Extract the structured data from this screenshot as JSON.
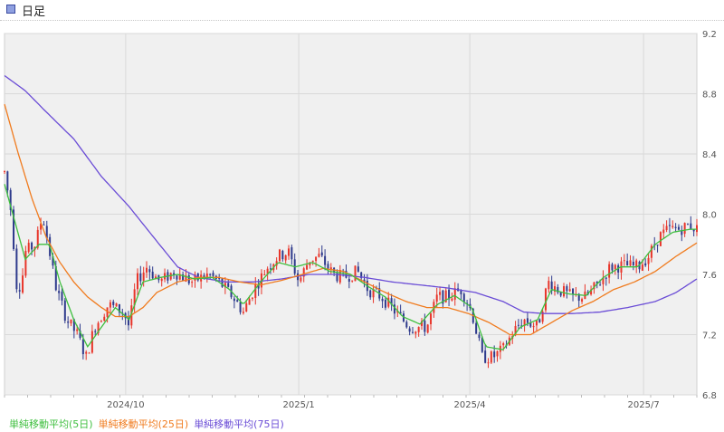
{
  "header": {
    "title": "日足"
  },
  "legend": {
    "ma5": "単純移動平均(5日)",
    "ma25": "単純移動平均(25日)",
    "ma75": "単純移動平均(75日)"
  },
  "colors": {
    "up": "#e8352a",
    "down": "#2e3a8c",
    "ma5": "#3fbf3f",
    "ma25": "#f07b1e",
    "ma75": "#6a4cd6",
    "plot_bg": "#f0f0f0",
    "grid": "#d9d9d9"
  },
  "chart_data": {
    "type": "candlestick",
    "x_ticks": [
      {
        "label": "2024/10",
        "t": 0.175
      },
      {
        "label": "2025/1",
        "t": 0.425
      },
      {
        "label": "2025/4",
        "t": 0.672
      },
      {
        "label": "2025/7",
        "t": 0.923
      }
    ],
    "y_ticks": [
      6.8,
      7.2,
      7.6,
      8.0,
      8.4,
      8.8,
      9.2
    ],
    "ylim": [
      6.8,
      9.2
    ],
    "grid": true,
    "series": {
      "ma5_name": "単純移動平均(5日)",
      "ma25_name": "単純移動平均(25日)",
      "ma75_name": "単純移動平均(75日)"
    },
    "price_path": [
      [
        0,
        8.28
      ],
      [
        0.01,
        8.0
      ],
      [
        0.018,
        7.5
      ],
      [
        0.025,
        7.55
      ],
      [
        0.03,
        7.75
      ],
      [
        0.045,
        7.8
      ],
      [
        0.055,
        8.0
      ],
      [
        0.065,
        7.75
      ],
      [
        0.075,
        7.5
      ],
      [
        0.09,
        7.3
      ],
      [
        0.105,
        7.2
      ],
      [
        0.118,
        7.05
      ],
      [
        0.13,
        7.25
      ],
      [
        0.15,
        7.4
      ],
      [
        0.172,
        7.35
      ],
      [
        0.18,
        7.25
      ],
      [
        0.19,
        7.55
      ],
      [
        0.205,
        7.65
      ],
      [
        0.225,
        7.55
      ],
      [
        0.245,
        7.62
      ],
      [
        0.27,
        7.55
      ],
      [
        0.295,
        7.6
      ],
      [
        0.31,
        7.55
      ],
      [
        0.33,
        7.45
      ],
      [
        0.345,
        7.35
      ],
      [
        0.36,
        7.5
      ],
      [
        0.38,
        7.65
      ],
      [
        0.395,
        7.72
      ],
      [
        0.41,
        7.75
      ],
      [
        0.425,
        7.55
      ],
      [
        0.44,
        7.7
      ],
      [
        0.455,
        7.72
      ],
      [
        0.475,
        7.6
      ],
      [
        0.49,
        7.58
      ],
      [
        0.51,
        7.62
      ],
      [
        0.525,
        7.5
      ],
      [
        0.545,
        7.45
      ],
      [
        0.565,
        7.35
      ],
      [
        0.585,
        7.25
      ],
      [
        0.61,
        7.25
      ],
      [
        0.625,
        7.45
      ],
      [
        0.64,
        7.45
      ],
      [
        0.66,
        7.5
      ],
      [
        0.675,
        7.35
      ],
      [
        0.69,
        7.05
      ],
      [
        0.705,
        7.05
      ],
      [
        0.72,
        7.1
      ],
      [
        0.735,
        7.22
      ],
      [
        0.75,
        7.3
      ],
      [
        0.77,
        7.25
      ],
      [
        0.785,
        7.55
      ],
      [
        0.8,
        7.5
      ],
      [
        0.82,
        7.45
      ],
      [
        0.84,
        7.45
      ],
      [
        0.86,
        7.55
      ],
      [
        0.875,
        7.65
      ],
      [
        0.895,
        7.66
      ],
      [
        0.915,
        7.65
      ],
      [
        0.93,
        7.72
      ],
      [
        0.945,
        7.85
      ],
      [
        0.96,
        7.9
      ],
      [
        0.975,
        7.9
      ],
      [
        0.99,
        7.93
      ],
      [
        1.0,
        7.9
      ]
    ],
    "ma5_path": [
      [
        0,
        8.2
      ],
      [
        0.015,
        7.95
      ],
      [
        0.03,
        7.7
      ],
      [
        0.05,
        7.8
      ],
      [
        0.065,
        7.8
      ],
      [
        0.08,
        7.55
      ],
      [
        0.1,
        7.3
      ],
      [
        0.12,
        7.12
      ],
      [
        0.14,
        7.25
      ],
      [
        0.16,
        7.38
      ],
      [
        0.18,
        7.3
      ],
      [
        0.2,
        7.55
      ],
      [
        0.225,
        7.58
      ],
      [
        0.25,
        7.6
      ],
      [
        0.275,
        7.57
      ],
      [
        0.3,
        7.58
      ],
      [
        0.325,
        7.5
      ],
      [
        0.345,
        7.4
      ],
      [
        0.37,
        7.55
      ],
      [
        0.395,
        7.68
      ],
      [
        0.42,
        7.65
      ],
      [
        0.445,
        7.68
      ],
      [
        0.47,
        7.62
      ],
      [
        0.5,
        7.6
      ],
      [
        0.525,
        7.52
      ],
      [
        0.55,
        7.45
      ],
      [
        0.575,
        7.32
      ],
      [
        0.6,
        7.27
      ],
      [
        0.625,
        7.4
      ],
      [
        0.65,
        7.46
      ],
      [
        0.675,
        7.38
      ],
      [
        0.695,
        7.12
      ],
      [
        0.72,
        7.1
      ],
      [
        0.745,
        7.25
      ],
      [
        0.77,
        7.3
      ],
      [
        0.79,
        7.5
      ],
      [
        0.815,
        7.47
      ],
      [
        0.84,
        7.46
      ],
      [
        0.865,
        7.58
      ],
      [
        0.89,
        7.65
      ],
      [
        0.915,
        7.65
      ],
      [
        0.94,
        7.8
      ],
      [
        0.965,
        7.88
      ],
      [
        0.99,
        7.9
      ],
      [
        1.0,
        7.9
      ]
    ],
    "ma25_path": [
      [
        0,
        8.73
      ],
      [
        0.02,
        8.4
      ],
      [
        0.04,
        8.1
      ],
      [
        0.06,
        7.85
      ],
      [
        0.08,
        7.68
      ],
      [
        0.1,
        7.55
      ],
      [
        0.12,
        7.45
      ],
      [
        0.14,
        7.38
      ],
      [
        0.16,
        7.32
      ],
      [
        0.18,
        7.32
      ],
      [
        0.2,
        7.38
      ],
      [
        0.22,
        7.48
      ],
      [
        0.25,
        7.55
      ],
      [
        0.28,
        7.58
      ],
      [
        0.31,
        7.58
      ],
      [
        0.34,
        7.55
      ],
      [
        0.37,
        7.53
      ],
      [
        0.4,
        7.56
      ],
      [
        0.43,
        7.6
      ],
      [
        0.46,
        7.64
      ],
      [
        0.49,
        7.62
      ],
      [
        0.52,
        7.55
      ],
      [
        0.55,
        7.48
      ],
      [
        0.58,
        7.42
      ],
      [
        0.61,
        7.38
      ],
      [
        0.64,
        7.38
      ],
      [
        0.67,
        7.34
      ],
      [
        0.7,
        7.28
      ],
      [
        0.73,
        7.2
      ],
      [
        0.76,
        7.2
      ],
      [
        0.79,
        7.28
      ],
      [
        0.82,
        7.36
      ],
      [
        0.85,
        7.42
      ],
      [
        0.88,
        7.5
      ],
      [
        0.91,
        7.55
      ],
      [
        0.94,
        7.62
      ],
      [
        0.97,
        7.72
      ],
      [
        1.0,
        7.81
      ]
    ],
    "ma75_path": [
      [
        0,
        8.92
      ],
      [
        0.03,
        8.82
      ],
      [
        0.06,
        8.68
      ],
      [
        0.1,
        8.5
      ],
      [
        0.14,
        8.25
      ],
      [
        0.18,
        8.05
      ],
      [
        0.22,
        7.82
      ],
      [
        0.25,
        7.65
      ],
      [
        0.28,
        7.58
      ],
      [
        0.32,
        7.55
      ],
      [
        0.36,
        7.55
      ],
      [
        0.4,
        7.57
      ],
      [
        0.44,
        7.6
      ],
      [
        0.48,
        7.6
      ],
      [
        0.52,
        7.58
      ],
      [
        0.56,
        7.55
      ],
      [
        0.6,
        7.53
      ],
      [
        0.64,
        7.51
      ],
      [
        0.68,
        7.48
      ],
      [
        0.72,
        7.42
      ],
      [
        0.75,
        7.35
      ],
      [
        0.78,
        7.34
      ],
      [
        0.82,
        7.34
      ],
      [
        0.86,
        7.35
      ],
      [
        0.9,
        7.38
      ],
      [
        0.94,
        7.42
      ],
      [
        0.97,
        7.48
      ],
      [
        1.0,
        7.57
      ]
    ]
  }
}
